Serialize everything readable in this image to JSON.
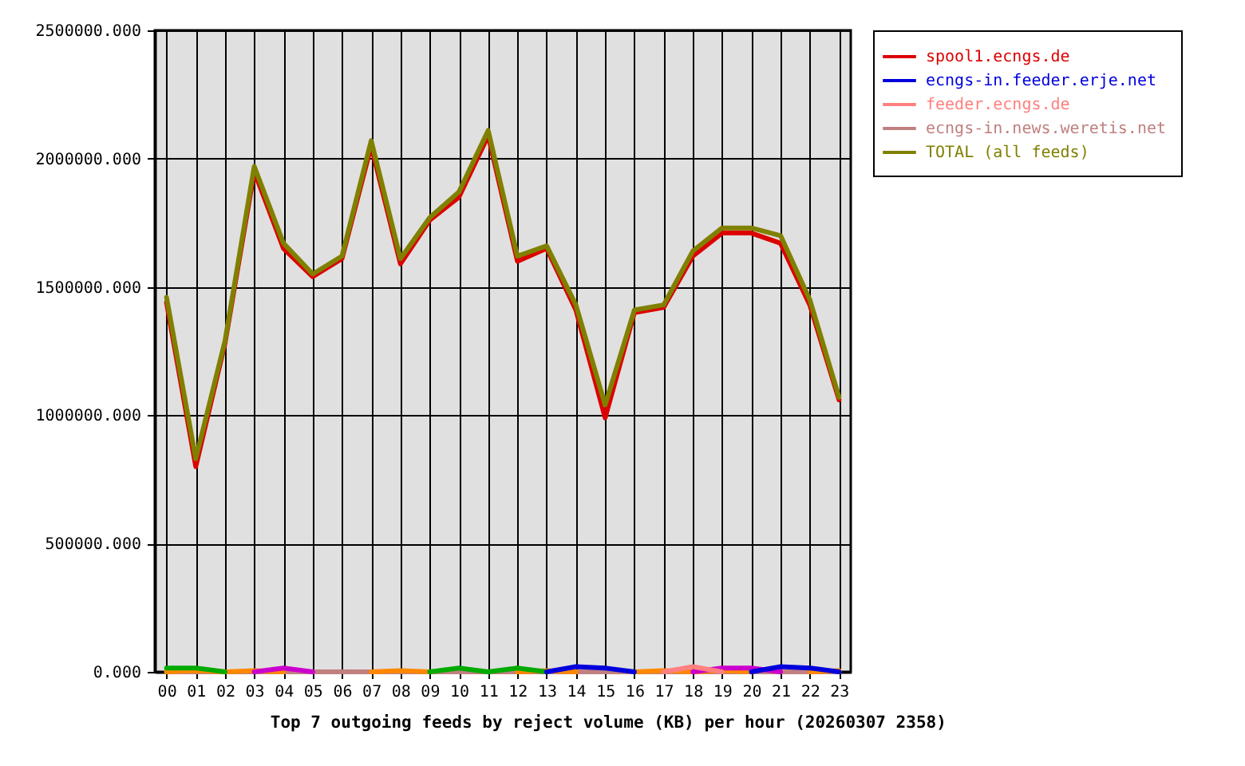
{
  "chart_data": {
    "type": "line",
    "title": "Top 7 outgoing feeds by reject volume (KB) per hour (20260307 2358)",
    "categories": [
      "00",
      "01",
      "02",
      "03",
      "04",
      "05",
      "06",
      "07",
      "08",
      "09",
      "10",
      "11",
      "12",
      "13",
      "14",
      "15",
      "16",
      "17",
      "18",
      "19",
      "20",
      "21",
      "22",
      "23"
    ],
    "ylim": [
      0,
      2500000
    ],
    "yticks": [
      {
        "value": 0,
        "label": "0.000"
      },
      {
        "value": 500000,
        "label": "500000.000"
      },
      {
        "value": 1000000,
        "label": "1000000.000"
      },
      {
        "value": 1500000,
        "label": "1500000.000"
      },
      {
        "value": 2000000,
        "label": "2000000.000"
      },
      {
        "value": 2500000,
        "label": "2500000.000"
      }
    ],
    "grid": true,
    "legend": "top right",
    "series": [
      {
        "name": "spool1.ecngs.de",
        "color": "#dd0000",
        "values": [
          1440000,
          800000,
          1280000,
          1950000,
          1650000,
          1540000,
          1610000,
          2050000,
          1590000,
          1760000,
          1850000,
          2090000,
          1600000,
          1650000,
          1410000,
          990000,
          1400000,
          1420000,
          1620000,
          1710000,
          1710000,
          1670000,
          1430000,
          1060000
        ]
      },
      {
        "color": "#00aa00",
        "values": [
          15000,
          15000,
          0,
          null,
          null,
          null,
          null,
          null,
          null,
          0,
          15000,
          0,
          15000,
          0,
          null,
          null,
          null,
          null,
          null,
          null,
          null,
          null,
          null,
          null
        ]
      },
      {
        "name": "ecngs-in.feeder.erje.net",
        "color": "#0000dd",
        "values": [
          null,
          null,
          null,
          null,
          null,
          null,
          null,
          null,
          null,
          null,
          null,
          null,
          null,
          0,
          20000,
          15000,
          0,
          null,
          null,
          null,
          0,
          20000,
          15000,
          0
        ]
      },
      {
        "color": "#cc00cc",
        "values": [
          null,
          null,
          null,
          0,
          15000,
          0,
          null,
          null,
          null,
          null,
          null,
          null,
          null,
          null,
          null,
          null,
          null,
          null,
          0,
          15000,
          15000,
          0,
          null,
          null
        ]
      },
      {
        "name": "feeder.ecngs.de",
        "color": "#ff8080",
        "values": [
          null,
          null,
          null,
          null,
          null,
          null,
          null,
          null,
          null,
          null,
          null,
          null,
          null,
          null,
          null,
          null,
          null,
          0,
          20000,
          0,
          null,
          null,
          null,
          null
        ]
      },
      {
        "color": "#ff8800",
        "values": [
          0,
          5000,
          0,
          5000,
          0,
          null,
          null,
          0,
          5000,
          0,
          null,
          null,
          0,
          5000,
          0,
          null,
          0,
          5000,
          0,
          5000,
          0,
          null,
          0,
          5000
        ]
      },
      {
        "name": "ecngs-in.news.weretis.net",
        "color": "#c08080",
        "values": [
          0,
          0,
          0,
          0,
          0,
          0,
          0,
          0,
          0,
          0,
          0,
          0,
          0,
          0,
          0,
          0,
          0,
          0,
          0,
          0,
          0,
          0,
          0,
          0
        ]
      },
      {
        "name": "TOTAL (all feeds)",
        "color": "#808000",
        "values": [
          1460000,
          830000,
          1290000,
          1970000,
          1670000,
          1550000,
          1620000,
          2070000,
          1610000,
          1770000,
          1870000,
          2110000,
          1620000,
          1660000,
          1430000,
          1040000,
          1410000,
          1430000,
          1640000,
          1730000,
          1730000,
          1700000,
          1450000,
          1070000
        ]
      }
    ]
  }
}
